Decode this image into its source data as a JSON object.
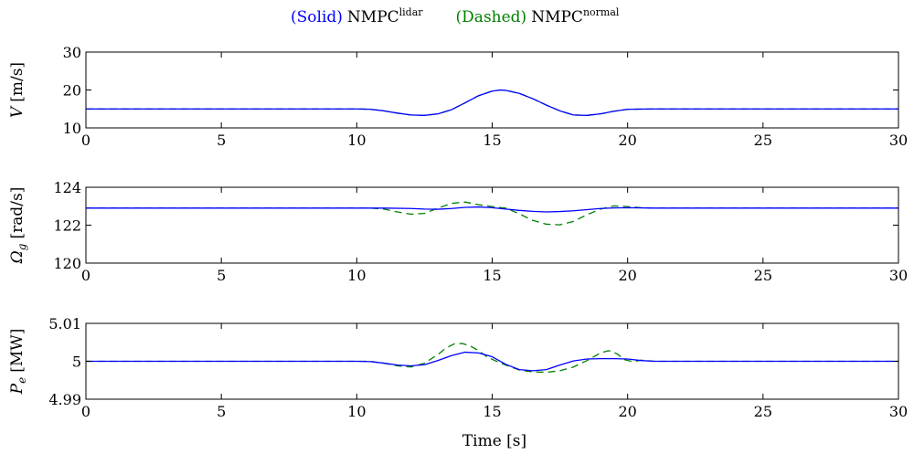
{
  "legend": {
    "solid_paren": "(Solid)",
    "solid_name": "NMPC",
    "solid_sup": "lidar",
    "dashed_paren": "(Dashed)",
    "dashed_name": "NMPC",
    "dashed_sup": "normal"
  },
  "colors": {
    "solid": "#0000ff",
    "dashed": "#007f00",
    "axes": "#000000"
  },
  "chart_data": [
    {
      "type": "line",
      "ylabel_main": "V",
      "ylabel_unit": "[m/s]",
      "xlim": [
        0,
        30
      ],
      "ylim": [
        10,
        30
      ],
      "xticks": [
        0,
        5,
        10,
        15,
        20,
        25,
        30
      ],
      "yticks": [
        10,
        20,
        30
      ],
      "yticklabels": [
        "10",
        "20",
        "30"
      ],
      "series": [
        {
          "name": "(Solid) NMPC lidar",
          "style": "solid",
          "x": [
            0,
            10,
            10.5,
            11,
            11.5,
            12,
            12.5,
            13,
            13.5,
            14,
            14.5,
            15,
            15.3,
            15.5,
            16,
            16.5,
            17,
            17.5,
            18,
            18.5,
            19,
            19.5,
            20,
            21,
            30
          ],
          "y": [
            15,
            15,
            14.9,
            14.5,
            13.9,
            13.4,
            13.3,
            13.7,
            14.8,
            16.6,
            18.5,
            19.7,
            20,
            19.9,
            19.1,
            17.7,
            16,
            14.5,
            13.4,
            13.3,
            13.7,
            14.4,
            14.9,
            15,
            15
          ]
        },
        {
          "name": "(Dashed) NMPC normal",
          "style": "dashed",
          "x": [
            0,
            10,
            10.5,
            11,
            11.5,
            12,
            12.5,
            13,
            13.5,
            14,
            14.5,
            15,
            15.3,
            15.5,
            16,
            16.5,
            17,
            17.5,
            18,
            18.5,
            19,
            19.5,
            20,
            21,
            30
          ],
          "y": [
            15,
            15,
            14.9,
            14.5,
            13.9,
            13.4,
            13.3,
            13.7,
            14.8,
            16.6,
            18.5,
            19.7,
            20,
            19.9,
            19.1,
            17.7,
            16,
            14.5,
            13.4,
            13.3,
            13.7,
            14.4,
            14.9,
            15,
            15
          ]
        }
      ]
    },
    {
      "type": "line",
      "ylabel_main": "Ω",
      "ylabel_sub": "g",
      "ylabel_unit": "[rad/s]",
      "xlim": [
        0,
        30
      ],
      "ylim": [
        120,
        124
      ],
      "xticks": [
        0,
        5,
        10,
        15,
        20,
        25,
        30
      ],
      "yticks": [
        120,
        122,
        124
      ],
      "yticklabels": [
        "120",
        "122",
        "124"
      ],
      "series": [
        {
          "name": "(Solid) NMPC lidar",
          "style": "solid",
          "x": [
            0,
            10,
            11,
            12,
            12.5,
            13,
            13.5,
            14,
            14.5,
            15,
            15.5,
            16,
            16.5,
            17,
            17.5,
            18,
            18.5,
            19,
            19.5,
            20,
            21,
            30
          ],
          "y": [
            122.9,
            122.9,
            122.9,
            122.88,
            122.85,
            122.84,
            122.88,
            122.94,
            122.96,
            122.92,
            122.85,
            122.78,
            122.73,
            122.7,
            122.72,
            122.76,
            122.82,
            122.88,
            122.91,
            122.92,
            122.9,
            122.9
          ]
        },
        {
          "name": "(Dashed) NMPC normal",
          "style": "dashed",
          "x": [
            0,
            10,
            10.5,
            11,
            11.5,
            12,
            12.5,
            13,
            13.5,
            14,
            14.5,
            15,
            15.5,
            16,
            16.5,
            17,
            17.5,
            18,
            18.5,
            19,
            19.5,
            20,
            20.5,
            21,
            30
          ],
          "y": [
            122.9,
            122.9,
            122.9,
            122.85,
            122.7,
            122.58,
            122.62,
            122.9,
            123.15,
            123.22,
            123.08,
            122.98,
            122.9,
            122.6,
            122.25,
            122.05,
            122.02,
            122.2,
            122.55,
            122.85,
            123.02,
            122.98,
            122.92,
            122.9,
            122.9
          ]
        }
      ]
    },
    {
      "type": "line",
      "ylabel_main": "P",
      "ylabel_sub": "e",
      "ylabel_unit": "[MW]",
      "xlim": [
        0,
        30
      ],
      "ylim": [
        4.99,
        5.01
      ],
      "xticks": [
        0,
        5,
        10,
        15,
        20,
        25,
        30
      ],
      "yticks": [
        4.99,
        5,
        5.01
      ],
      "yticklabels": [
        "4.99",
        "5",
        "5.01"
      ],
      "series": [
        {
          "name": "(Solid) NMPC lidar",
          "style": "solid",
          "x": [
            0,
            10,
            10.5,
            11,
            11.5,
            12,
            12.5,
            13,
            13.5,
            14,
            14.5,
            15,
            15.5,
            16,
            16.5,
            17,
            17.5,
            18,
            18.5,
            19,
            19.5,
            20,
            20.5,
            21,
            30
          ],
          "y": [
            5,
            5,
            4.9999,
            4.9995,
            4.999,
            4.9988,
            4.9991,
            5.0002,
            5.0015,
            5.0024,
            5.0022,
            5.0012,
            4.9992,
            4.9978,
            4.9975,
            4.9978,
            4.999,
            5.0001,
            5.0006,
            5.0007,
            5.0007,
            5.0006,
            5.0002,
            5,
            5
          ]
        },
        {
          "name": "(Dashed) NMPC normal",
          "style": "dashed",
          "x": [
            0,
            10,
            10.5,
            11,
            11.5,
            12,
            12.5,
            13,
            13.3,
            13.6,
            13.9,
            14.2,
            14.5,
            14.8,
            15.1,
            15.5,
            16,
            16.5,
            17,
            17.5,
            18,
            18.5,
            19,
            19.3,
            19.6,
            19.9,
            20.2,
            20.5,
            21,
            30
          ],
          "y": [
            5,
            5,
            5,
            4.9995,
            4.9988,
            4.9985,
            4.9995,
            5.0018,
            5.0035,
            5.0046,
            5.0047,
            5.004,
            5.0028,
            5.0012,
            5.0002,
            4.999,
            4.9977,
            4.9972,
            4.9971,
            4.9975,
            4.9985,
            5.0002,
            5.0022,
            5.0028,
            5.002,
            5.0004,
            4.9999,
            5.0003,
            5,
            5
          ]
        }
      ]
    }
  ],
  "xlabel": "Time [s]"
}
